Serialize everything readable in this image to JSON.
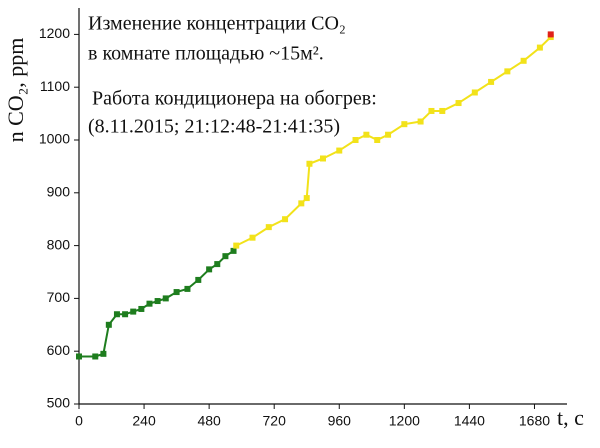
{
  "chart_data": {
    "type": "line",
    "annotations": [
      "Изменение концентрации CO₂",
      "в комнате площадью ~15м².",
      "Работа кондиционера на обогрев:",
      "(8.11.2015;  21:12:48-21:41:35)"
    ],
    "xlabel": "t, c",
    "ylabel": "n CO₂, ppm",
    "xlim": [
      0,
      1800
    ],
    "ylim": [
      500,
      1250
    ],
    "xticks": [
      0,
      240,
      480,
      720,
      960,
      1200,
      1440,
      1680
    ],
    "yticks": [
      500,
      600,
      700,
      800,
      900,
      1000,
      1100,
      1200
    ],
    "series": [
      {
        "color": "#1e7d1e",
        "x": [
          0,
          60,
          90,
          110,
          140,
          170,
          200,
          230,
          260,
          290,
          320,
          360,
          400,
          440,
          480,
          510,
          540,
          570
        ],
        "values": [
          590,
          590,
          595,
          650,
          670,
          670,
          675,
          680,
          690,
          695,
          700,
          712,
          718,
          735,
          755,
          765,
          780,
          790
        ]
      },
      {
        "color": "#f2e21a",
        "x": [
          580,
          640,
          700,
          760,
          820,
          840,
          850,
          900,
          960,
          1020,
          1060,
          1100,
          1140,
          1200,
          1260,
          1300,
          1340,
          1400,
          1460,
          1520,
          1580,
          1640,
          1700,
          1740
        ],
        "values": [
          800,
          815,
          835,
          850,
          880,
          890,
          955,
          965,
          980,
          1000,
          1010,
          1000,
          1010,
          1030,
          1035,
          1055,
          1055,
          1070,
          1090,
          1110,
          1130,
          1150,
          1175,
          1195
        ]
      },
      {
        "color": "#e0201a",
        "x": [
          1740
        ],
        "values": [
          1200
        ]
      }
    ]
  }
}
